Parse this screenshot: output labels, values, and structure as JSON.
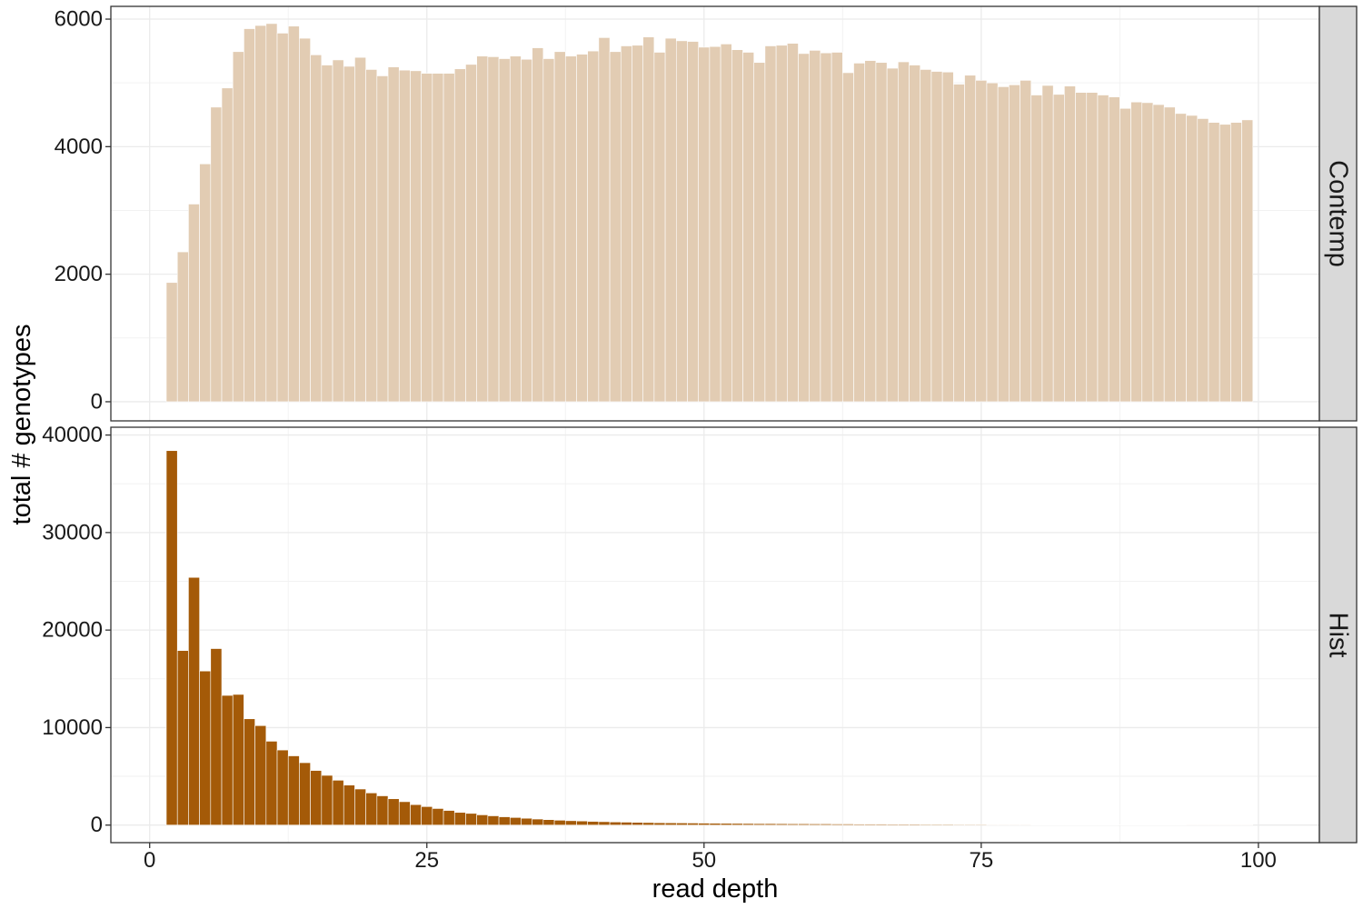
{
  "chart_data": {
    "type": "bar",
    "title": "",
    "xlabel": "read depth",
    "ylabel": "total # genotypes",
    "xlim": [
      -3.5,
      105.5
    ],
    "x_ticks": [
      0,
      25,
      50,
      75,
      100
    ],
    "x_tick_labels": [
      "0",
      "25",
      "50",
      "75",
      "100"
    ],
    "grid": true,
    "legend": "none",
    "facets": [
      {
        "strip_label": "Contemp",
        "color": "#e2ccb3",
        "ylim": [
          -300,
          6200
        ],
        "y_ticks": [
          0,
          2000,
          4000,
          6000
        ],
        "y_tick_labels": [
          "0",
          "2000",
          "4000",
          "6000"
        ],
        "x": [
          2,
          3,
          4,
          5,
          6,
          7,
          8,
          9,
          10,
          11,
          12,
          13,
          14,
          15,
          16,
          17,
          18,
          19,
          20,
          21,
          22,
          23,
          24,
          25,
          26,
          27,
          28,
          29,
          30,
          31,
          32,
          33,
          34,
          35,
          36,
          37,
          38,
          39,
          40,
          41,
          42,
          43,
          44,
          45,
          46,
          47,
          48,
          49,
          50,
          51,
          52,
          53,
          54,
          55,
          56,
          57,
          58,
          59,
          60,
          61,
          62,
          63,
          64,
          65,
          66,
          67,
          68,
          69,
          70,
          71,
          72,
          73,
          74,
          75,
          76,
          77,
          78,
          79,
          80,
          81,
          82,
          83,
          84,
          85,
          86,
          87,
          88,
          89,
          90,
          91,
          92,
          93,
          94,
          95,
          96,
          97,
          98,
          99
        ],
        "values": [
          1870,
          2350,
          3100,
          3730,
          4620,
          4920,
          5490,
          5850,
          5900,
          5930,
          5780,
          5890,
          5700,
          5440,
          5280,
          5360,
          5260,
          5400,
          5210,
          5110,
          5250,
          5200,
          5190,
          5150,
          5150,
          5150,
          5220,
          5290,
          5420,
          5410,
          5380,
          5420,
          5370,
          5550,
          5380,
          5490,
          5420,
          5450,
          5500,
          5710,
          5490,
          5580,
          5590,
          5720,
          5480,
          5700,
          5660,
          5650,
          5560,
          5570,
          5610,
          5520,
          5480,
          5320,
          5580,
          5590,
          5620,
          5460,
          5510,
          5470,
          5480,
          5160,
          5310,
          5350,
          5320,
          5230,
          5330,
          5280,
          5210,
          5180,
          5170,
          4980,
          5120,
          5040,
          5000,
          4940,
          4970,
          5040,
          4810,
          4960,
          4820,
          4950,
          4850,
          4850,
          4810,
          4780,
          4600,
          4700,
          4690,
          4660,
          4620,
          4520,
          4490,
          4440,
          4380,
          4350,
          4380,
          4420
        ]
      },
      {
        "strip_label": "Hist",
        "color": "#a45a08",
        "ylim": [
          -1800,
          40800
        ],
        "y_ticks": [
          0,
          10000,
          20000,
          30000,
          40000
        ],
        "y_tick_labels": [
          "0",
          "10000",
          "20000",
          "30000",
          "40000"
        ],
        "x": [
          2,
          3,
          4,
          5,
          6,
          7,
          8,
          9,
          10,
          11,
          12,
          13,
          14,
          15,
          16,
          17,
          18,
          19,
          20,
          21,
          22,
          23,
          24,
          25,
          26,
          27,
          28,
          29,
          30,
          31,
          32,
          33,
          34,
          35,
          36,
          37,
          38,
          39,
          40,
          41,
          42,
          43,
          44,
          45,
          46,
          47,
          48,
          49,
          50,
          51,
          52,
          53,
          54,
          55,
          56,
          57,
          58,
          59,
          60,
          61,
          62,
          63,
          64,
          65,
          66,
          67,
          68,
          69,
          70,
          71,
          72,
          73,
          74,
          75,
          76,
          77,
          78,
          79,
          80,
          81,
          82,
          83,
          84,
          85,
          86,
          87,
          88,
          89,
          90,
          91,
          92,
          93,
          94,
          95,
          96,
          97,
          98,
          99
        ],
        "values": [
          38400,
          17900,
          25400,
          15800,
          18100,
          13300,
          13400,
          10900,
          10200,
          8600,
          7700,
          7100,
          6400,
          5600,
          5100,
          4600,
          4100,
          3700,
          3300,
          3000,
          2700,
          2400,
          2100,
          1900,
          1700,
          1500,
          1300,
          1200,
          1050,
          950,
          850,
          780,
          700,
          620,
          560,
          500,
          450,
          420,
          380,
          350,
          320,
          300,
          280,
          260,
          240,
          230,
          220,
          210,
          200,
          190,
          180,
          170,
          160,
          150,
          150,
          140,
          130,
          130,
          120,
          120,
          110,
          110,
          100,
          100,
          100,
          90,
          90,
          90,
          80,
          80,
          80,
          70,
          70,
          70,
          60,
          60,
          60,
          60,
          50,
          50,
          50,
          50,
          50,
          50,
          40,
          40,
          40,
          40,
          40,
          40,
          40,
          40,
          30,
          30,
          30,
          30,
          30,
          30
        ]
      }
    ]
  }
}
